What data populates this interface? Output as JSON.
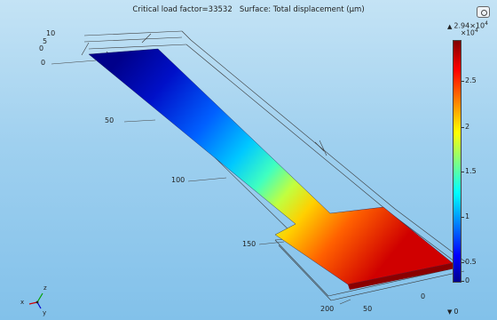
{
  "plot": {
    "title": "Critical load factor=33532   Surface: Total displacement (µm)",
    "y_ticks": [
      "10",
      "5",
      "0"
    ],
    "z_ticks": [
      "0",
      "50",
      "100",
      "150",
      "200"
    ],
    "x_ticks": [
      "50",
      "0"
    ],
    "axis_labels": {
      "z": "z",
      "x": "x",
      "y": "y"
    }
  },
  "colorbar": {
    "max_label": "2.94×10",
    "max_exp": "4",
    "multiplier": "×10",
    "multiplier_exp": "4",
    "min_label": "0",
    "ticks": [
      "2.5",
      "2",
      "1.5",
      "1",
      "0.5",
      "0"
    ],
    "colormap": "rainbow"
  },
  "icons": {
    "camera": "camera-icon",
    "triad": "axis-triad-icon"
  }
}
